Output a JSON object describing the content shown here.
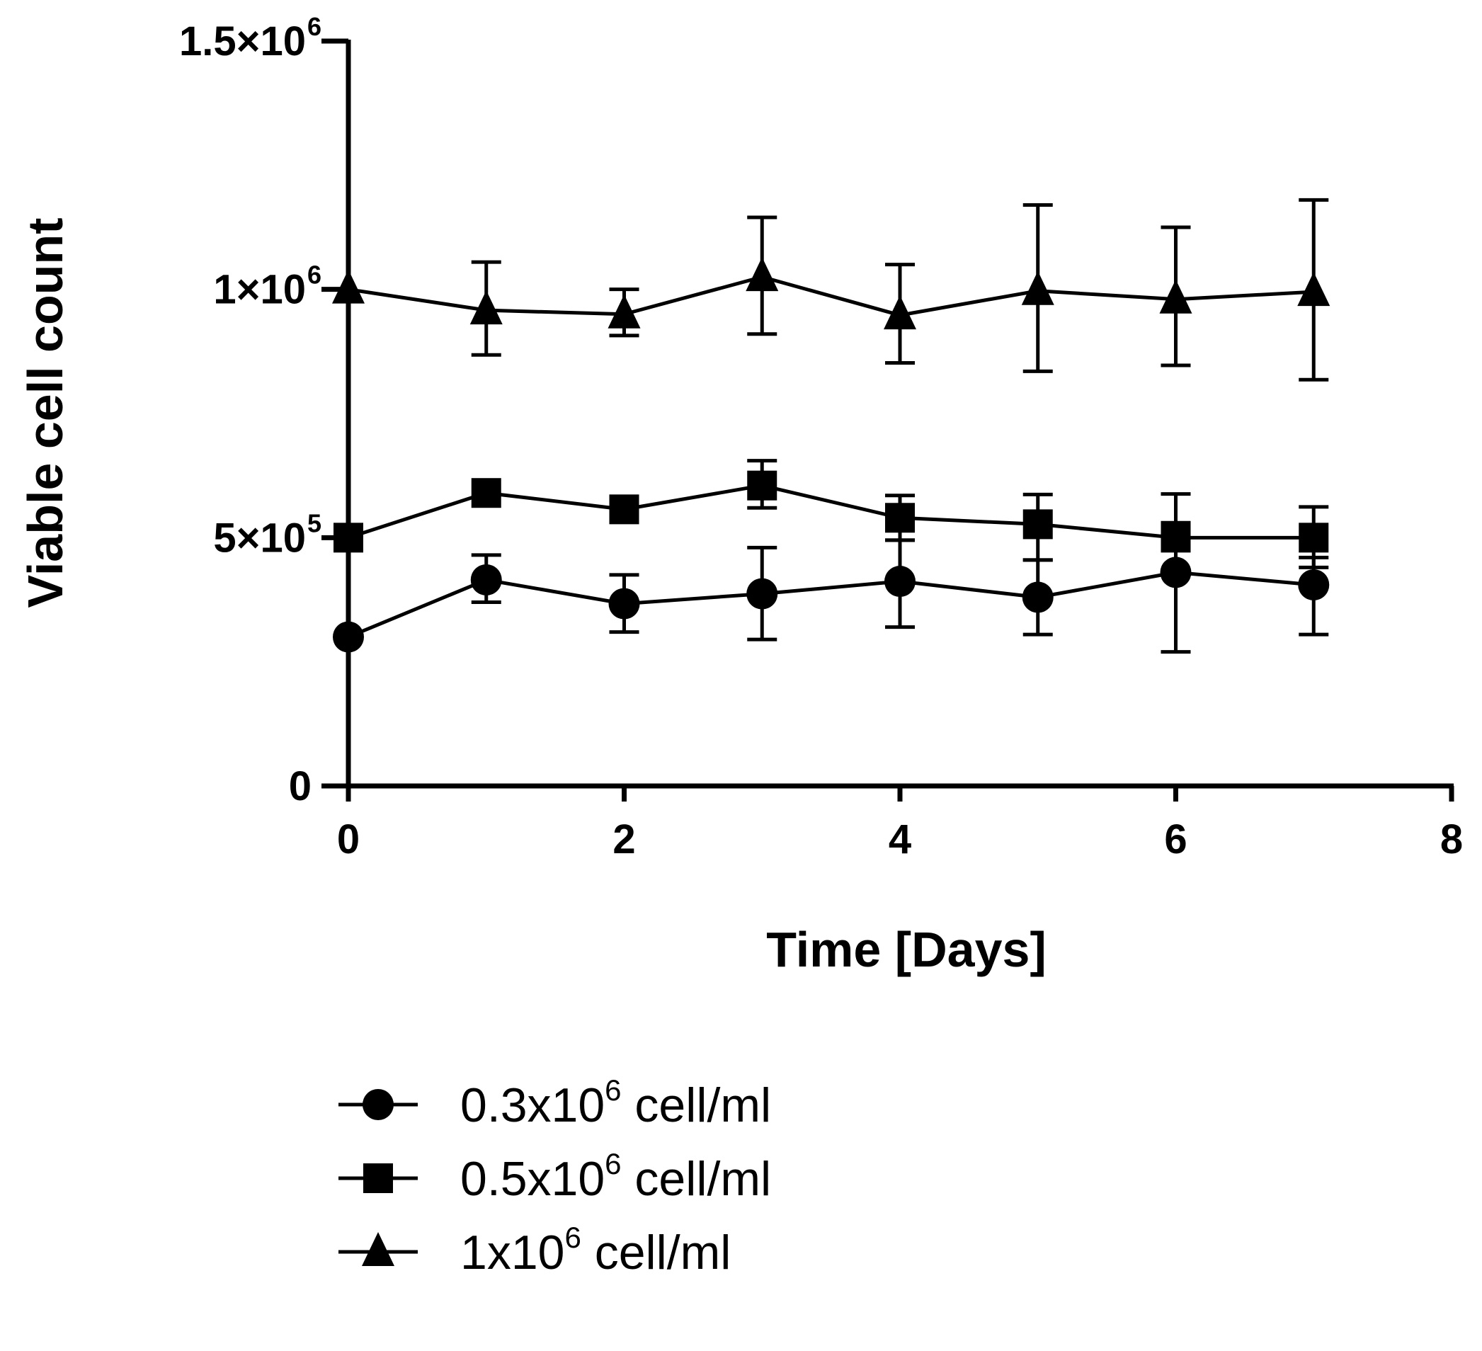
{
  "chart_data": {
    "type": "line",
    "title": "",
    "xlabel": "Time [Days]",
    "ylabel": "Viable cell count",
    "xlim": [
      0,
      8
    ],
    "ylim": [
      0,
      1500000
    ],
    "grid": false,
    "x_ticks": [
      0,
      2,
      4,
      6,
      8
    ],
    "x_tick_labels": [
      "0",
      "2",
      "4",
      "6",
      "8"
    ],
    "y_ticks": [
      0,
      500000,
      1000000,
      1500000
    ],
    "y_tick_labels": [
      {
        "base": "0",
        "exp": ""
      },
      {
        "base": "5×10",
        "exp": "5"
      },
      {
        "base": "1×10",
        "exp": "6"
      },
      {
        "base": "1.5×10",
        "exp": "6"
      }
    ],
    "legend_placement": "bottom",
    "x": [
      0,
      1,
      2,
      3,
      4,
      5,
      6,
      7
    ],
    "series": [
      {
        "name": "0.3x10",
        "name_exp": "6",
        "name_suffix": " cell/ml",
        "marker": "circle",
        "values": [
          300000,
          415000,
          367000,
          387000,
          412000,
          380000,
          430000,
          405000
        ],
        "error_upper": [
          300000,
          465000,
          425000,
          480000,
          495000,
          455000,
          530000,
          460000
        ],
        "error_lower": [
          300000,
          370000,
          310000,
          295000,
          320000,
          305000,
          270000,
          305000
        ]
      },
      {
        "name": "0.5x10",
        "name_exp": "6",
        "name_suffix": " cell/ml",
        "marker": "square",
        "values": [
          500000,
          590000,
          557000,
          605000,
          540000,
          527000,
          500000,
          500000
        ],
        "error_upper": [
          500000,
          590000,
          557000,
          655000,
          585000,
          587000,
          588000,
          562000
        ],
        "error_lower": [
          500000,
          590000,
          557000,
          560000,
          495000,
          455000,
          495000,
          440000
        ]
      },
      {
        "name": "1x10",
        "name_exp": "6",
        "name_suffix": " cell/ml",
        "marker": "triangle",
        "values": [
          1000000,
          958000,
          950000,
          1025000,
          948000,
          997000,
          980000,
          995000
        ],
        "error_upper": [
          1000000,
          1055000,
          1000000,
          1145000,
          1050000,
          1170000,
          1125000,
          1180000
        ],
        "error_lower": [
          1000000,
          868000,
          907000,
          910000,
          852000,
          835000,
          847000,
          818000
        ]
      }
    ]
  }
}
